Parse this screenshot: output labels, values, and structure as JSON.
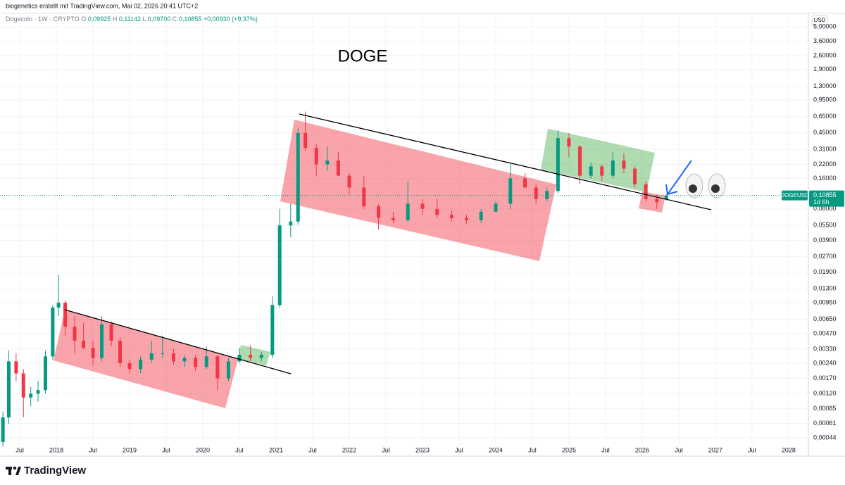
{
  "header": {
    "author": "biogenetics erstellt mit TradingView.com, Mai 02, 2026 20:41 UTC+2",
    "symbol": "Dogecoin · 1W · CRYPTO",
    "ohlc": [
      [
        "O",
        "0,09925"
      ],
      [
        "H",
        "0,11142"
      ],
      [
        "L",
        "0,09700"
      ],
      [
        "C",
        "0,10855"
      ]
    ],
    "change": "+0,00930 (+9,37%)",
    "currency": "USD"
  },
  "footer": {
    "brand": "TradingView"
  },
  "chart_data": {
    "type": "candlestick",
    "title": "DOGE",
    "log_scale": true,
    "grid": true,
    "up_color": "#089981",
    "down_color": "#f23645",
    "x": [
      2017.27,
      2017.35,
      2017.45,
      2017.55,
      2017.65,
      2017.75,
      2017.85,
      2017.95,
      2018.03,
      2018.12,
      2018.25,
      2018.37,
      2018.5,
      2018.62,
      2018.75,
      2018.87,
      2019.0,
      2019.15,
      2019.3,
      2019.45,
      2019.6,
      2019.75,
      2019.9,
      2020.05,
      2020.2,
      2020.35,
      2020.5,
      2020.65,
      2020.8,
      2020.95,
      2021.05,
      2021.2,
      2021.3,
      2021.4,
      2021.55,
      2021.7,
      2021.85,
      2022.0,
      2022.2,
      2022.4,
      2022.6,
      2022.8,
      2023.0,
      2023.2,
      2023.4,
      2023.6,
      2023.8,
      2024.0,
      2024.2,
      2024.4,
      2024.55,
      2024.7,
      2024.85,
      2025.0,
      2025.15,
      2025.3,
      2025.45,
      2025.6,
      2025.75,
      2025.9,
      2026.05,
      2026.2,
      2026.33
    ],
    "open": [
      0.0004,
      0.0007,
      0.0025,
      0.0019,
      0.0011,
      0.0012,
      0.0013,
      0.0028,
      0.0085,
      0.0095,
      0.0055,
      0.004,
      0.0034,
      0.0027,
      0.0058,
      0.004,
      0.0024,
      0.0021,
      0.0026,
      0.003,
      0.003,
      0.0025,
      0.0027,
      0.0022,
      0.0028,
      0.0017,
      0.0025,
      0.0029,
      0.0027,
      0.0029,
      0.009,
      0.055,
      0.06,
      0.45,
      0.32,
      0.22,
      0.24,
      0.17,
      0.13,
      0.085,
      0.065,
      0.062,
      0.09,
      0.08,
      0.07,
      0.065,
      0.062,
      0.075,
      0.09,
      0.16,
      0.13,
      0.1,
      0.12,
      0.4,
      0.33,
      0.17,
      0.21,
      0.17,
      0.24,
      0.2,
      0.14,
      0.1,
      0.09925
    ],
    "high": [
      0.0008,
      0.0032,
      0.003,
      0.0021,
      0.0014,
      0.0016,
      0.0032,
      0.009,
      0.018,
      0.01,
      0.007,
      0.006,
      0.004,
      0.007,
      0.0062,
      0.0043,
      0.0026,
      0.0028,
      0.004,
      0.0045,
      0.0033,
      0.0029,
      0.0029,
      0.0035,
      0.0029,
      0.0027,
      0.0034,
      0.0036,
      0.0031,
      0.011,
      0.08,
      0.09,
      0.5,
      0.73,
      0.35,
      0.33,
      0.29,
      0.18,
      0.17,
      0.09,
      0.075,
      0.15,
      0.1,
      0.1,
      0.078,
      0.07,
      0.08,
      0.095,
      0.22,
      0.18,
      0.14,
      0.13,
      0.48,
      0.45,
      0.34,
      0.23,
      0.22,
      0.29,
      0.28,
      0.21,
      0.15,
      0.11,
      0.11142
    ],
    "low": [
      0.00036,
      0.0006,
      0.0016,
      0.0007,
      0.0009,
      0.001,
      0.0012,
      0.0026,
      0.007,
      0.0045,
      0.003,
      0.0033,
      0.0023,
      0.0025,
      0.0035,
      0.0022,
      0.0019,
      0.0019,
      0.0024,
      0.0027,
      0.0023,
      0.0022,
      0.002,
      0.0021,
      0.0013,
      0.0016,
      0.0024,
      0.0025,
      0.0025,
      0.0027,
      0.0085,
      0.042,
      0.056,
      0.3,
      0.17,
      0.19,
      0.17,
      0.11,
      0.08,
      0.05,
      0.058,
      0.06,
      0.07,
      0.065,
      0.06,
      0.057,
      0.058,
      0.075,
      0.08,
      0.13,
      0.09,
      0.095,
      0.115,
      0.26,
      0.14,
      0.16,
      0.15,
      0.16,
      0.18,
      0.13,
      0.095,
      0.08,
      0.097
    ],
    "close": [
      0.0007,
      0.0025,
      0.0019,
      0.0011,
      0.0012,
      0.0013,
      0.0028,
      0.0085,
      0.0095,
      0.0055,
      0.004,
      0.0034,
      0.0027,
      0.0058,
      0.004,
      0.0024,
      0.0021,
      0.0026,
      0.003,
      0.003,
      0.0025,
      0.0027,
      0.0022,
      0.0028,
      0.0017,
      0.0025,
      0.0029,
      0.0027,
      0.0029,
      0.009,
      0.055,
      0.06,
      0.45,
      0.32,
      0.22,
      0.24,
      0.17,
      0.13,
      0.085,
      0.065,
      0.062,
      0.09,
      0.08,
      0.07,
      0.065,
      0.062,
      0.075,
      0.09,
      0.16,
      0.13,
      0.1,
      0.12,
      0.4,
      0.33,
      0.17,
      0.21,
      0.17,
      0.24,
      0.2,
      0.14,
      0.1,
      0.093,
      0.10855
    ],
    "last_price": {
      "value": 0.10855,
      "label": "0,10855",
      "symbol": "DOGEUSD",
      "countdown": "1d 6h"
    },
    "xlim": [
      2017.23,
      2028.27
    ],
    "xticks": [
      {
        "value": 2017.5,
        "label": "Jul"
      },
      2018,
      {
        "value": 2018.5,
        "label": "Jul"
      },
      2019,
      {
        "value": 2019.5,
        "label": "Jul"
      },
      2020,
      {
        "value": 2020.5,
        "label": "Jul"
      },
      2021,
      {
        "value": 2021.5,
        "label": "Jul"
      },
      2022,
      {
        "value": 2022.5,
        "label": "Jul"
      },
      2023,
      {
        "value": 2023.5,
        "label": "Jul"
      },
      2024,
      {
        "value": 2024.5,
        "label": "Jul"
      },
      2025,
      {
        "value": 2025.5,
        "label": "Jul"
      },
      2026,
      {
        "value": 2026.5,
        "label": "Jul"
      },
      2027,
      {
        "value": 2027.5,
        "label": "Jul"
      },
      2028
    ],
    "ylim": [
      0.00029,
      6.7
    ],
    "yticks": [
      {
        "value": 5,
        "label": "5,00000"
      },
      {
        "value": 3.6,
        "label": "3,60000"
      },
      {
        "value": 2.6,
        "label": "2,60000"
      },
      {
        "value": 1.9,
        "label": "1,90000"
      },
      {
        "value": 1.3,
        "label": "1,30000"
      },
      {
        "value": 0.95,
        "label": "0,95000"
      },
      {
        "value": 0.65,
        "label": "0,65000"
      },
      {
        "value": 0.45,
        "label": "0,45000"
      },
      {
        "value": 0.31,
        "label": "0,31000"
      },
      {
        "value": 0.22,
        "label": "0,22000"
      },
      {
        "value": 0.16,
        "label": "0,16000"
      },
      {
        "value": 0.08,
        "label": "0,08000"
      },
      {
        "value": 0.055,
        "label": "0,05500"
      },
      {
        "value": 0.039,
        "label": "0,03900"
      },
      {
        "value": 0.027,
        "label": "0,02700"
      },
      {
        "value": 0.019,
        "label": "0,01900"
      },
      {
        "value": 0.013,
        "label": "0,01300"
      },
      {
        "value": 0.0095,
        "label": "0,00950"
      },
      {
        "value": 0.0065,
        "label": "0,00650"
      },
      {
        "value": 0.0047,
        "label": "0,00470"
      },
      {
        "value": 0.0033,
        "label": "0,00330"
      },
      {
        "value": 0.0024,
        "label": "0,00240"
      },
      {
        "value": 0.0017,
        "label": "0,00170"
      },
      {
        "value": 0.0012,
        "label": "0,00120"
      },
      {
        "value": 0.00085,
        "label": "0,00085"
      },
      {
        "value": 0.00061,
        "label": "0,00061"
      },
      {
        "value": 0.00044,
        "label": "0,00044"
      }
    ]
  }
}
